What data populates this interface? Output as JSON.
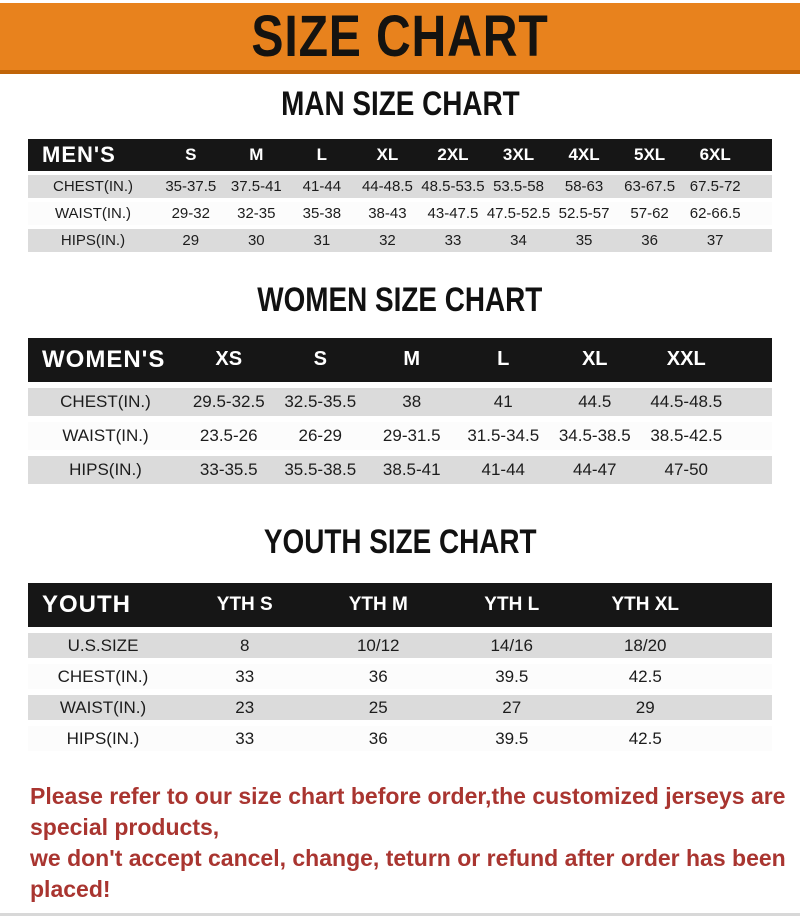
{
  "banner": {
    "title": "SIZE CHART",
    "bg_color": "#E8821D",
    "border_color": "#C06408"
  },
  "sections": [
    {
      "heading": "MAN SIZE CHART",
      "table": {
        "label": "MEN'S",
        "columns": [
          "S",
          "M",
          "L",
          "XL",
          "2XL",
          "3XL",
          "4XL",
          "5XL",
          "6XL"
        ],
        "rows": [
          {
            "label": "CHEST(IN.)",
            "values": [
              "35-37.5",
              "37.5-41",
              "41-44",
              "44-48.5",
              "48.5-53.5",
              "53.5-58",
              "58-63",
              "63-67.5",
              "67.5-72"
            ]
          },
          {
            "label": "WAIST(IN.)",
            "values": [
              "29-32",
              "32-35",
              "35-38",
              "38-43",
              "43-47.5",
              "47.5-52.5",
              "52.5-57",
              "57-62",
              "62-66.5"
            ]
          },
          {
            "label": "HIPS(IN.)",
            "values": [
              "29",
              "30",
              "31",
              "32",
              "33",
              "34",
              "35",
              "36",
              "37"
            ]
          }
        ]
      }
    },
    {
      "heading": "WOMEN SIZE CHART",
      "table": {
        "label": "WOMEN'S",
        "columns": [
          "XS",
          "S",
          "M",
          "L",
          "XL",
          "XXL"
        ],
        "rows": [
          {
            "label": "CHEST(IN.)",
            "values": [
              "29.5-32.5",
              "32.5-35.5",
              "38",
              "41",
              "44.5",
              "44.5-48.5"
            ]
          },
          {
            "label": "WAIST(IN.)",
            "values": [
              "23.5-26",
              "26-29",
              "29-31.5",
              "31.5-34.5",
              "34.5-38.5",
              "38.5-42.5"
            ]
          },
          {
            "label": "HIPS(IN.)",
            "values": [
              "33-35.5",
              "35.5-38.5",
              "38.5-41",
              "41-44",
              "44-47",
              "47-50"
            ]
          }
        ]
      }
    },
    {
      "heading": "YOUTH SIZE CHART",
      "table": {
        "label": "YOUTH",
        "columns": [
          "YTH S",
          "YTH M",
          "YTH L",
          "YTH XL"
        ],
        "rows": [
          {
            "label": "U.S.SIZE",
            "values": [
              "8",
              "10/12",
              "14/16",
              "18/20"
            ]
          },
          {
            "label": "CHEST(IN.)",
            "values": [
              "33",
              "36",
              "39.5",
              "42.5"
            ]
          },
          {
            "label": "WAIST(IN.)",
            "values": [
              "23",
              "25",
              "27",
              "29"
            ]
          },
          {
            "label": "HIPS(IN.)",
            "values": [
              "33",
              "36",
              "39.5",
              "42.5"
            ]
          }
        ]
      }
    }
  ],
  "footer": {
    "line1": "Please refer to our size chart before order,the customized jerseys are special products,",
    "line2": "we don't accept cancel, change, teturn or refund after order has been placed!",
    "text_color": "#A93530"
  }
}
